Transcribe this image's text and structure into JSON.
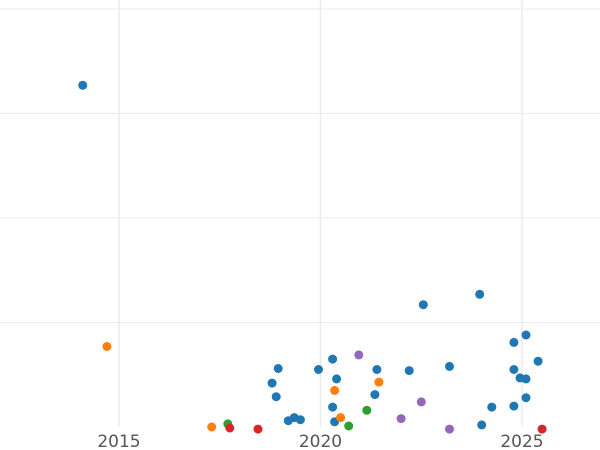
{
  "chart_data": {
    "type": "scatter",
    "xlabel": "",
    "ylabel": "",
    "xlim": [
      2015.0,
      2025.0
    ],
    "x_ticks": [
      2015,
      2020,
      2025
    ],
    "x_tick_labels": [
      "2015",
      "2020",
      "2025"
    ],
    "ylim": [
      0,
      4
    ],
    "y_gridlines": [
      1,
      2,
      3,
      4
    ],
    "grid": true,
    "colors": {
      "blue": "#1f77b4",
      "orange": "#ff7f0e",
      "green": "#2ca02c",
      "red": "#d62728",
      "purple": "#9467bd"
    },
    "series": [
      {
        "color": "blue",
        "points": [
          {
            "x": 2014.1,
            "y": 3.27
          },
          {
            "x": 2018.8,
            "y": 0.42
          },
          {
            "x": 2018.95,
            "y": 0.56
          },
          {
            "x": 2018.9,
            "y": 0.29
          },
          {
            "x": 2019.2,
            "y": 0.06
          },
          {
            "x": 2019.35,
            "y": 0.09
          },
          {
            "x": 2019.5,
            "y": 0.07
          },
          {
            "x": 2019.95,
            "y": 0.55
          },
          {
            "x": 2020.3,
            "y": 0.65
          },
          {
            "x": 2020.3,
            "y": 0.19
          },
          {
            "x": 2020.4,
            "y": 0.46
          },
          {
            "x": 2020.35,
            "y": 0.05
          },
          {
            "x": 2021.35,
            "y": 0.31
          },
          {
            "x": 2021.4,
            "y": 0.55
          },
          {
            "x": 2022.2,
            "y": 0.54
          },
          {
            "x": 2022.55,
            "y": 1.17
          },
          {
            "x": 2023.2,
            "y": 0.58
          },
          {
            "x": 2023.95,
            "y": 1.27
          },
          {
            "x": 2024.0,
            "y": 0.02
          },
          {
            "x": 2024.25,
            "y": 0.19
          },
          {
            "x": 2024.8,
            "y": 0.2
          },
          {
            "x": 2024.8,
            "y": 0.55
          },
          {
            "x": 2024.8,
            "y": 0.81
          },
          {
            "x": 2024.95,
            "y": 0.47
          },
          {
            "x": 2025.1,
            "y": 0.46
          },
          {
            "x": 2025.1,
            "y": 0.88
          },
          {
            "x": 2025.1,
            "y": 0.28
          },
          {
            "x": 2025.4,
            "y": 0.63
          }
        ]
      },
      {
        "color": "orange",
        "points": [
          {
            "x": 2014.7,
            "y": 0.77
          },
          {
            "x": 2017.3,
            "y": 0.0
          },
          {
            "x": 2020.35,
            "y": 0.35
          },
          {
            "x": 2020.5,
            "y": 0.09
          },
          {
            "x": 2021.45,
            "y": 0.43
          }
        ]
      },
      {
        "color": "green",
        "points": [
          {
            "x": 2017.7,
            "y": 0.03
          },
          {
            "x": 2020.7,
            "y": 0.01
          },
          {
            "x": 2021.15,
            "y": 0.16
          }
        ]
      },
      {
        "color": "red",
        "points": [
          {
            "x": 2017.75,
            "y": -0.01
          },
          {
            "x": 2018.45,
            "y": -0.02
          },
          {
            "x": 2025.5,
            "y": -0.02
          }
        ]
      },
      {
        "color": "purple",
        "points": [
          {
            "x": 2020.95,
            "y": 0.69
          },
          {
            "x": 2022.0,
            "y": 0.08
          },
          {
            "x": 2022.5,
            "y": 0.24
          },
          {
            "x": 2023.2,
            "y": -0.02
          }
        ]
      }
    ]
  }
}
